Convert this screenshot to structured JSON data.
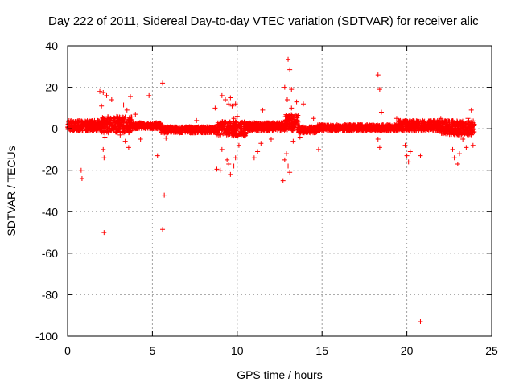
{
  "chart_data": {
    "type": "scatter",
    "title": "Day 222 of 2011, Sidereal Day-to-day VTEC variation (SDTVAR) for receiver alic",
    "xlabel": "GPS time / hours",
    "ylabel": "SDTVAR / TECUs",
    "xlim": [
      0,
      25
    ],
    "ylim": [
      -100,
      40
    ],
    "xticks": [
      0,
      5,
      10,
      15,
      20,
      25
    ],
    "yticks": [
      -100,
      -80,
      -60,
      -40,
      -20,
      0,
      20,
      40
    ],
    "grid": true,
    "marker": "+",
    "color": "#ff0000",
    "band": {
      "x_range": [
        0,
        24
      ],
      "segments": [
        {
          "x": [
            0.0,
            2.0
          ],
          "center": 1.5,
          "spread": 2.5
        },
        {
          "x": [
            2.0,
            3.8
          ],
          "center": 2.0,
          "spread": 4.0
        },
        {
          "x": [
            3.8,
            5.5
          ],
          "center": 1.5,
          "spread": 1.5
        },
        {
          "x": [
            5.5,
            8.8
          ],
          "center": -0.5,
          "spread": 1.5
        },
        {
          "x": [
            8.8,
            10.5
          ],
          "center": 0.0,
          "spread": 3.5
        },
        {
          "x": [
            10.5,
            12.8
          ],
          "center": 1.0,
          "spread": 2.0
        },
        {
          "x": [
            12.8,
            13.6
          ],
          "center": 3.0,
          "spread": 4.0
        },
        {
          "x": [
            13.6,
            14.7
          ],
          "center": -0.5,
          "spread": 1.5
        },
        {
          "x": [
            14.7,
            19.5
          ],
          "center": 0.5,
          "spread": 1.5
        },
        {
          "x": [
            19.5,
            22.0
          ],
          "center": 1.5,
          "spread": 2.5
        },
        {
          "x": [
            22.0,
            24.0
          ],
          "center": 0.5,
          "spread": 3.5
        }
      ]
    },
    "outliers": [
      {
        "x": 0.8,
        "y": -20
      },
      {
        "x": 0.85,
        "y": -24
      },
      {
        "x": 2.15,
        "y": -50
      },
      {
        "x": 1.9,
        "y": 18
      },
      {
        "x": 2.1,
        "y": 17.5
      },
      {
        "x": 2.3,
        "y": 16
      },
      {
        "x": 2.0,
        "y": 11
      },
      {
        "x": 2.6,
        "y": 14
      },
      {
        "x": 2.2,
        "y": -4
      },
      {
        "x": 2.1,
        "y": -10
      },
      {
        "x": 2.15,
        "y": -14
      },
      {
        "x": 3.3,
        "y": 11.5
      },
      {
        "x": 3.5,
        "y": 9
      },
      {
        "x": 3.7,
        "y": 15.5
      },
      {
        "x": 3.1,
        "y": -3
      },
      {
        "x": 3.4,
        "y": -6
      },
      {
        "x": 3.6,
        "y": -9
      },
      {
        "x": 4.0,
        "y": 7
      },
      {
        "x": 4.3,
        "y": -5
      },
      {
        "x": 4.8,
        "y": 16
      },
      {
        "x": 5.3,
        "y": -13
      },
      {
        "x": 5.6,
        "y": 22
      },
      {
        "x": 5.7,
        "y": -32
      },
      {
        "x": 5.6,
        "y": -48.5
      },
      {
        "x": 5.9,
        "y": -2
      },
      {
        "x": 5.8,
        "y": -4.5
      },
      {
        "x": 7.6,
        "y": 4
      },
      {
        "x": 8.7,
        "y": 10
      },
      {
        "x": 8.8,
        "y": -19.5
      },
      {
        "x": 9.0,
        "y": -20
      },
      {
        "x": 9.1,
        "y": 16
      },
      {
        "x": 9.3,
        "y": 14
      },
      {
        "x": 9.5,
        "y": 12
      },
      {
        "x": 9.6,
        "y": 15
      },
      {
        "x": 9.4,
        "y": -15
      },
      {
        "x": 9.5,
        "y": -17
      },
      {
        "x": 9.6,
        "y": -22
      },
      {
        "x": 9.8,
        "y": -18
      },
      {
        "x": 9.9,
        "y": -14
      },
      {
        "x": 9.1,
        "y": -10
      },
      {
        "x": 9.7,
        "y": 11
      },
      {
        "x": 9.9,
        "y": 12
      },
      {
        "x": 10.0,
        "y": 6
      },
      {
        "x": 9.8,
        "y": 5
      },
      {
        "x": 10.1,
        "y": -8
      },
      {
        "x": 11.0,
        "y": -14
      },
      {
        "x": 11.2,
        "y": -11
      },
      {
        "x": 11.5,
        "y": 9
      },
      {
        "x": 11.4,
        "y": -7
      },
      {
        "x": 12.0,
        "y": -5
      },
      {
        "x": 12.7,
        "y": -25
      },
      {
        "x": 12.8,
        "y": -15
      },
      {
        "x": 12.9,
        "y": -12
      },
      {
        "x": 12.8,
        "y": 20
      },
      {
        "x": 13.0,
        "y": 33.5
      },
      {
        "x": 13.1,
        "y": 28.5
      },
      {
        "x": 13.2,
        "y": 19
      },
      {
        "x": 12.95,
        "y": 14
      },
      {
        "x": 13.0,
        "y": -18
      },
      {
        "x": 13.1,
        "y": -21
      },
      {
        "x": 13.2,
        "y": 10
      },
      {
        "x": 13.3,
        "y": -6
      },
      {
        "x": 13.5,
        "y": 13
      },
      {
        "x": 13.9,
        "y": 12
      },
      {
        "x": 13.7,
        "y": -4
      },
      {
        "x": 14.5,
        "y": 5
      },
      {
        "x": 14.8,
        "y": -10
      },
      {
        "x": 18.3,
        "y": 26
      },
      {
        "x": 18.4,
        "y": 19
      },
      {
        "x": 18.5,
        "y": 8
      },
      {
        "x": 18.3,
        "y": -5
      },
      {
        "x": 18.4,
        "y": -9
      },
      {
        "x": 19.4,
        "y": 5
      },
      {
        "x": 19.9,
        "y": -8
      },
      {
        "x": 20.0,
        "y": -13
      },
      {
        "x": 20.1,
        "y": -16
      },
      {
        "x": 20.2,
        "y": -11
      },
      {
        "x": 20.8,
        "y": -13
      },
      {
        "x": 20.8,
        "y": -93
      },
      {
        "x": 21.0,
        "y": 3
      },
      {
        "x": 22.0,
        "y": 5
      },
      {
        "x": 22.7,
        "y": -10
      },
      {
        "x": 22.8,
        "y": -14
      },
      {
        "x": 23.0,
        "y": -17
      },
      {
        "x": 23.1,
        "y": -12
      },
      {
        "x": 23.8,
        "y": 9
      },
      {
        "x": 23.6,
        "y": 5
      },
      {
        "x": 23.9,
        "y": -8
      },
      {
        "x": 23.5,
        "y": -9
      },
      {
        "x": 23.3,
        "y": -5
      }
    ]
  }
}
